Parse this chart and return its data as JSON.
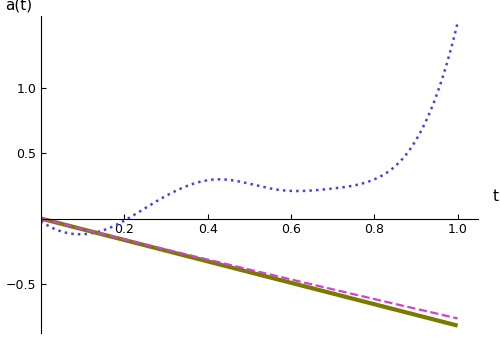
{
  "xlim": [
    0.0,
    1.05
  ],
  "ylim": [
    -0.88,
    1.55
  ],
  "xlabel": "t",
  "ylabel": "a(t)",
  "xticks": [
    0.2,
    0.4,
    0.6,
    0.8,
    1.0
  ],
  "yticks": [
    -0.5,
    0.5,
    1.0
  ],
  "exact_color": "#7a7a00",
  "exact_linewidth": 3.0,
  "regularized_color": "#cc44cc",
  "regularized_linestyle": "--",
  "regularized_linewidth": 1.6,
  "noreg_color": "#4444dd",
  "noreg_linestyle": ":",
  "noreg_linewidth": 1.8,
  "background_color": "#ffffff",
  "n_points": 500
}
